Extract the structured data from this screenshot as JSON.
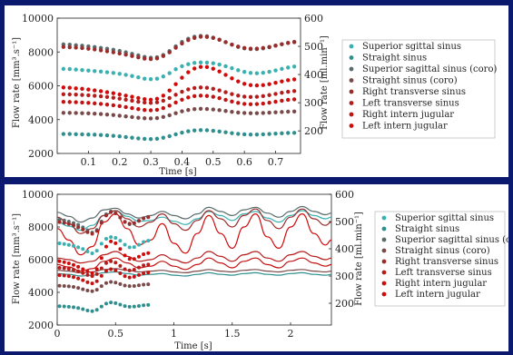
{
  "colors": {
    "frame_background": "#0b1a6e",
    "series": [
      "#3ab0b0",
      "#2f8f8f",
      "#5a6b6b",
      "#7a4a4a",
      "#9b2c2c",
      "#b51d1d",
      "#c41212",
      "#d10a0a"
    ]
  },
  "chart_data": [
    {
      "type": "scatter",
      "xlabel": "Time [s]",
      "ylabel": "Flow rate [mm³.s⁻¹]",
      "ylabel_right": "Flow rate [ml.min⁻¹]",
      "xlim": [
        0,
        0.78
      ],
      "ylim": [
        2000,
        10000
      ],
      "ylim_right": [
        120,
        600
      ],
      "xticks": [
        0.1,
        0.2,
        0.3,
        0.4,
        0.5,
        0.6,
        0.7
      ],
      "yticks": [
        2000,
        4000,
        6000,
        8000,
        10000
      ],
      "yticks_right": [
        200,
        300,
        400,
        500,
        600
      ],
      "grid": false,
      "legend_position": "right",
      "x": [
        0.02,
        0.04,
        0.06,
        0.08,
        0.1,
        0.12,
        0.14,
        0.16,
        0.18,
        0.2,
        0.22,
        0.24,
        0.26,
        0.28,
        0.3,
        0.32,
        0.34,
        0.36,
        0.38,
        0.4,
        0.42,
        0.44,
        0.46,
        0.48,
        0.5,
        0.52,
        0.54,
        0.56,
        0.58,
        0.6,
        0.62,
        0.64,
        0.66,
        0.68,
        0.7,
        0.72,
        0.74,
        0.76
      ],
      "series": [
        {
          "name": "Superior sgittal sinus",
          "values": [
            7000,
            6990,
            6960,
            6930,
            6900,
            6870,
            6840,
            6800,
            6760,
            6710,
            6650,
            6580,
            6500,
            6420,
            6390,
            6420,
            6550,
            6750,
            6980,
            7160,
            7280,
            7350,
            7380,
            7370,
            7330,
            7260,
            7160,
            7040,
            6920,
            6820,
            6760,
            6740,
            6770,
            6830,
            6910,
            7000,
            7080,
            7140
          ]
        },
        {
          "name": "Straight sinus",
          "values": [
            3150,
            3150,
            3140,
            3130,
            3120,
            3110,
            3090,
            3070,
            3040,
            3010,
            2970,
            2930,
            2890,
            2860,
            2850,
            2870,
            2930,
            3020,
            3130,
            3230,
            3310,
            3360,
            3380,
            3370,
            3340,
            3300,
            3250,
            3200,
            3160,
            3130,
            3120,
            3120,
            3130,
            3150,
            3170,
            3190,
            3210,
            3220
          ]
        },
        {
          "name": "Superior sagittal sinus (coro)",
          "values": [
            8450,
            8430,
            8400,
            8370,
            8330,
            8290,
            8240,
            8190,
            8130,
            8060,
            7980,
            7890,
            7800,
            7710,
            7660,
            7690,
            7820,
            8050,
            8330,
            8590,
            8780,
            8900,
            8950,
            8930,
            8850,
            8730,
            8580,
            8430,
            8300,
            8210,
            8170,
            8170,
            8210,
            8280,
            8370,
            8460,
            8540,
            8600
          ]
        },
        {
          "name": "Straight sinus (coro)",
          "values": [
            4400,
            4400,
            4390,
            4380,
            4370,
            4350,
            4330,
            4300,
            4270,
            4230,
            4190,
            4150,
            4110,
            4080,
            4070,
            4090,
            4160,
            4260,
            4380,
            4490,
            4570,
            4620,
            4640,
            4630,
            4600,
            4560,
            4510,
            4460,
            4420,
            4390,
            4380,
            4380,
            4390,
            4410,
            4430,
            4450,
            4470,
            4480
          ]
        },
        {
          "name": "Right transverse sinus",
          "values": [
            8300,
            8280,
            8260,
            8230,
            8190,
            8150,
            8100,
            8040,
            7980,
            7910,
            7840,
            7760,
            7680,
            7610,
            7580,
            7620,
            7760,
            7980,
            8250,
            8500,
            8700,
            8830,
            8900,
            8890,
            8830,
            8720,
            8580,
            8440,
            8320,
            8240,
            8200,
            8200,
            8240,
            8300,
            8380,
            8460,
            8530,
            8580
          ]
        },
        {
          "name": "Left transverse sinus",
          "values": [
            5500,
            5490,
            5480,
            5460,
            5440,
            5410,
            5380,
            5340,
            5290,
            5240,
            5180,
            5120,
            5060,
            5010,
            4990,
            5020,
            5120,
            5280,
            5470,
            5650,
            5790,
            5870,
            5900,
            5880,
            5820,
            5730,
            5620,
            5510,
            5420,
            5360,
            5340,
            5350,
            5390,
            5450,
            5520,
            5590,
            5650,
            5690
          ]
        },
        {
          "name": "Right intern jugular",
          "values": [
            5050,
            5040,
            5030,
            5010,
            4990,
            4960,
            4930,
            4890,
            4850,
            4800,
            4740,
            4680,
            4620,
            4570,
            4550,
            4580,
            4680,
            4830,
            5010,
            5180,
            5310,
            5390,
            5420,
            5400,
            5350,
            5270,
            5170,
            5070,
            4990,
            4930,
            4910,
            4920,
            4950,
            5000,
            5060,
            5120,
            5170,
            5200
          ]
        },
        {
          "name": "Left intern jugular",
          "values": [
            5900,
            5880,
            5850,
            5820,
            5780,
            5730,
            5680,
            5620,
            5560,
            5490,
            5420,
            5350,
            5280,
            5210,
            5180,
            5230,
            5420,
            5720,
            6100,
            6480,
            6800,
            7020,
            7120,
            7110,
            7010,
            6850,
            6650,
            6440,
            6260,
            6120,
            6040,
            6020,
            6040,
            6100,
            6180,
            6260,
            6330,
            6380
          ]
        }
      ]
    },
    {
      "type": "line",
      "xlabel": "Time [s]",
      "ylabel": "Flow rate [mm³.s⁻¹]",
      "ylabel_right": "Flow rate [ml.min⁻¹]",
      "xlim": [
        0,
        2.35
      ],
      "ylim": [
        2000,
        10000
      ],
      "ylim_right": [
        120,
        600
      ],
      "xticks": [
        0,
        0.5,
        1,
        1.5,
        2
      ],
      "yticks": [
        2000,
        4000,
        6000,
        8000,
        10000
      ],
      "yticks_right": [
        200,
        300,
        400,
        500,
        600
      ],
      "grid": false,
      "legend_position": "right",
      "scatter_x": [
        0.02,
        0.06,
        0.1,
        0.14,
        0.18,
        0.22,
        0.26,
        0.3,
        0.34,
        0.38,
        0.42,
        0.46,
        0.5,
        0.54,
        0.58,
        0.62,
        0.66,
        0.7,
        0.74,
        0.78
      ],
      "scatter_series": [
        {
          "name": "Superior sgittal sinus",
          "values": [
            7000,
            6960,
            6900,
            6840,
            6760,
            6650,
            6500,
            6390,
            6550,
            6980,
            7280,
            7380,
            7330,
            7160,
            6920,
            6760,
            6770,
            6910,
            7080,
            7160
          ]
        },
        {
          "name": "Straight sinus",
          "values": [
            3150,
            3140,
            3120,
            3090,
            3040,
            2970,
            2890,
            2850,
            2930,
            3130,
            3310,
            3380,
            3340,
            3250,
            3160,
            3120,
            3130,
            3170,
            3210,
            3230
          ]
        },
        {
          "name": "Superior sagittal sinus (coro)",
          "values": [
            8450,
            8400,
            8330,
            8240,
            8130,
            7980,
            7800,
            7660,
            7820,
            8330,
            8780,
            8950,
            8850,
            8580,
            8300,
            8170,
            8210,
            8370,
            8540,
            8620
          ]
        },
        {
          "name": "Straight sinus (coro)",
          "values": [
            4400,
            4390,
            4370,
            4330,
            4270,
            4190,
            4110,
            4070,
            4160,
            4380,
            4570,
            4640,
            4600,
            4510,
            4420,
            4380,
            4390,
            4430,
            4470,
            4490
          ]
        },
        {
          "name": "Right transverse sinus",
          "values": [
            8300,
            8260,
            8190,
            8100,
            7980,
            7840,
            7680,
            7580,
            7760,
            8250,
            8700,
            8900,
            8830,
            8580,
            8320,
            8200,
            8240,
            8380,
            8530,
            8600
          ]
        },
        {
          "name": "Left transverse sinus",
          "values": [
            5500,
            5480,
            5440,
            5380,
            5290,
            5180,
            5060,
            4990,
            5120,
            5470,
            5790,
            5900,
            5820,
            5620,
            5420,
            5340,
            5390,
            5520,
            5650,
            5700
          ]
        },
        {
          "name": "Right intern jugular",
          "values": [
            5050,
            5030,
            4990,
            4930,
            4850,
            4740,
            4620,
            4550,
            4680,
            5010,
            5310,
            5420,
            5350,
            5170,
            4990,
            4910,
            4950,
            5060,
            5170,
            5210
          ]
        },
        {
          "name": "Left intern jugular",
          "values": [
            5900,
            5850,
            5780,
            5680,
            5560,
            5420,
            5280,
            5180,
            5420,
            6100,
            6800,
            7120,
            7010,
            6650,
            6260,
            6040,
            6040,
            6180,
            6330,
            6400
          ]
        }
      ],
      "line_x": [
        0,
        0.1,
        0.2,
        0.3,
        0.4,
        0.5,
        0.6,
        0.7,
        0.8,
        0.9,
        1.0,
        1.1,
        1.2,
        1.3,
        1.4,
        1.5,
        1.6,
        1.7,
        1.8,
        1.9,
        2.0,
        2.1,
        2.2,
        2.3,
        2.35
      ],
      "line_series": [
        {
          "name": "Superior sgittal sinus",
          "values": [
            8300,
            8050,
            7800,
            8100,
            8700,
            9000,
            8650,
            8350,
            8400,
            8600,
            8350,
            8150,
            8500,
            8950,
            8700,
            8400,
            8800,
            8950,
            8550,
            8300,
            8700,
            9000,
            8700,
            8500,
            8600
          ]
        },
        {
          "name": "Straight sinus",
          "values": [
            5150,
            5100,
            5000,
            5050,
            5200,
            5250,
            5150,
            5050,
            5100,
            5150,
            5050,
            5000,
            5100,
            5200,
            5100,
            5050,
            5150,
            5200,
            5100,
            5050,
            5150,
            5200,
            5100,
            5050,
            5100
          ]
        },
        {
          "name": "Superior sagittal sinus (coro)",
          "values": [
            8900,
            8650,
            8300,
            8550,
            9050,
            9150,
            8800,
            8550,
            8700,
            8950,
            8700,
            8500,
            8800,
            9200,
            8950,
            8700,
            9050,
            9200,
            8850,
            8600,
            8950,
            9250,
            8950,
            8750,
            8850
          ]
        },
        {
          "name": "Straight sinus (coro)",
          "values": [
            5350,
            5300,
            5200,
            5250,
            5400,
            5450,
            5350,
            5250,
            5300,
            5350,
            5250,
            5200,
            5300,
            5400,
            5300,
            5250,
            5350,
            5400,
            5300,
            5250,
            5350,
            5400,
            5300,
            5250,
            5300
          ]
        },
        {
          "name": "Right transverse sinus",
          "values": [
            8600,
            8200,
            7600,
            7900,
            8700,
            9000,
            8500,
            8000,
            8300,
            8800,
            8200,
            7800,
            8400,
            9000,
            8500,
            8000,
            8700,
            9100,
            8400,
            7900,
            8600,
            9100,
            8500,
            8100,
            8300
          ]
        },
        {
          "name": "Left transverse sinus",
          "values": [
            6100,
            6000,
            5800,
            5900,
            6300,
            6500,
            6200,
            5900,
            6000,
            6300,
            6000,
            5800,
            6100,
            6500,
            6200,
            5900,
            6300,
            6500,
            6100,
            5900,
            6300,
            6500,
            6200,
            6000,
            6100
          ]
        },
        {
          "name": "Right intern jugular",
          "values": [
            5700,
            5550,
            5300,
            5450,
            5900,
            6100,
            5800,
            5500,
            5600,
            5900,
            5600,
            5400,
            5700,
            6100,
            5800,
            5500,
            5900,
            6100,
            5700,
            5500,
            5900,
            6100,
            5800,
            5600,
            5700
          ]
        },
        {
          "name": "Left intern jugular",
          "values": [
            7900,
            7200,
            6300,
            6800,
            8300,
            8800,
            7900,
            6900,
            7200,
            8200,
            7000,
            6400,
            7600,
            8700,
            7600,
            6700,
            8000,
            8800,
            7400,
            6700,
            8000,
            8800,
            7600,
            6900,
            7200
          ]
        }
      ]
    }
  ]
}
